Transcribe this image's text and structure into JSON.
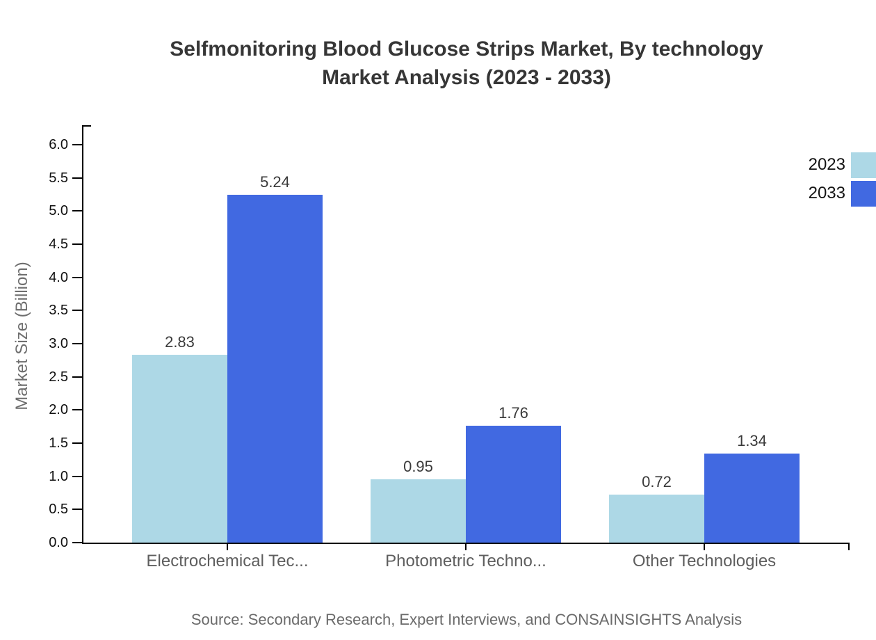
{
  "title": {
    "line1": "Selfmonitoring Blood Glucose Strips Market, By technology",
    "line2": "Market Analysis (2023 - 2033)"
  },
  "source_text": "Source: Secondary Research, Expert Interviews, and CONSAINSIGHTS Analysis",
  "colors": {
    "series_2023": "#ADD8E6",
    "series_2033": "#4169E1",
    "axis": "#000000",
    "category_label": "#5e5e5e",
    "tick_label": "#111111",
    "value_label": "#3a3a3a",
    "muted_text": "#6b6b6b"
  },
  "chart_data": {
    "type": "bar",
    "title": "Selfmonitoring Blood Glucose Strips Market, By technology Market Analysis (2023 - 2033)",
    "categories": [
      "Electrochemical Tec...",
      "Photometric Techno...",
      "Other Technologies"
    ],
    "series": [
      {
        "name": "2023",
        "color": "#ADD8E6",
        "values": [
          2.83,
          0.95,
          0.72
        ],
        "value_labels": [
          "2.83",
          "0.95",
          "0.72"
        ]
      },
      {
        "name": "2033",
        "color": "#4169E1",
        "values": [
          5.24,
          1.76,
          1.34
        ],
        "value_labels": [
          "5.24",
          "1.76",
          "1.34"
        ]
      }
    ],
    "xlabel": "",
    "ylabel": "Market Size (Billion)",
    "ylim": [
      0.0,
      6.27
    ],
    "ytick_labels": [
      "0.0",
      "0.5",
      "1.0",
      "1.5",
      "2.0",
      "2.5",
      "3.0",
      "3.5",
      "4.0",
      "4.5",
      "5.0",
      "5.5",
      "6.0"
    ],
    "ytick_values": [
      0.0,
      0.5,
      1.0,
      1.5,
      2.0,
      2.5,
      3.0,
      3.5,
      4.0,
      4.5,
      5.0,
      5.5,
      6.0
    ],
    "grid": false,
    "legend_position": "top-right",
    "source": "Source: Secondary Research, Expert Interviews, and CONSAINSIGHTS Analysis"
  }
}
